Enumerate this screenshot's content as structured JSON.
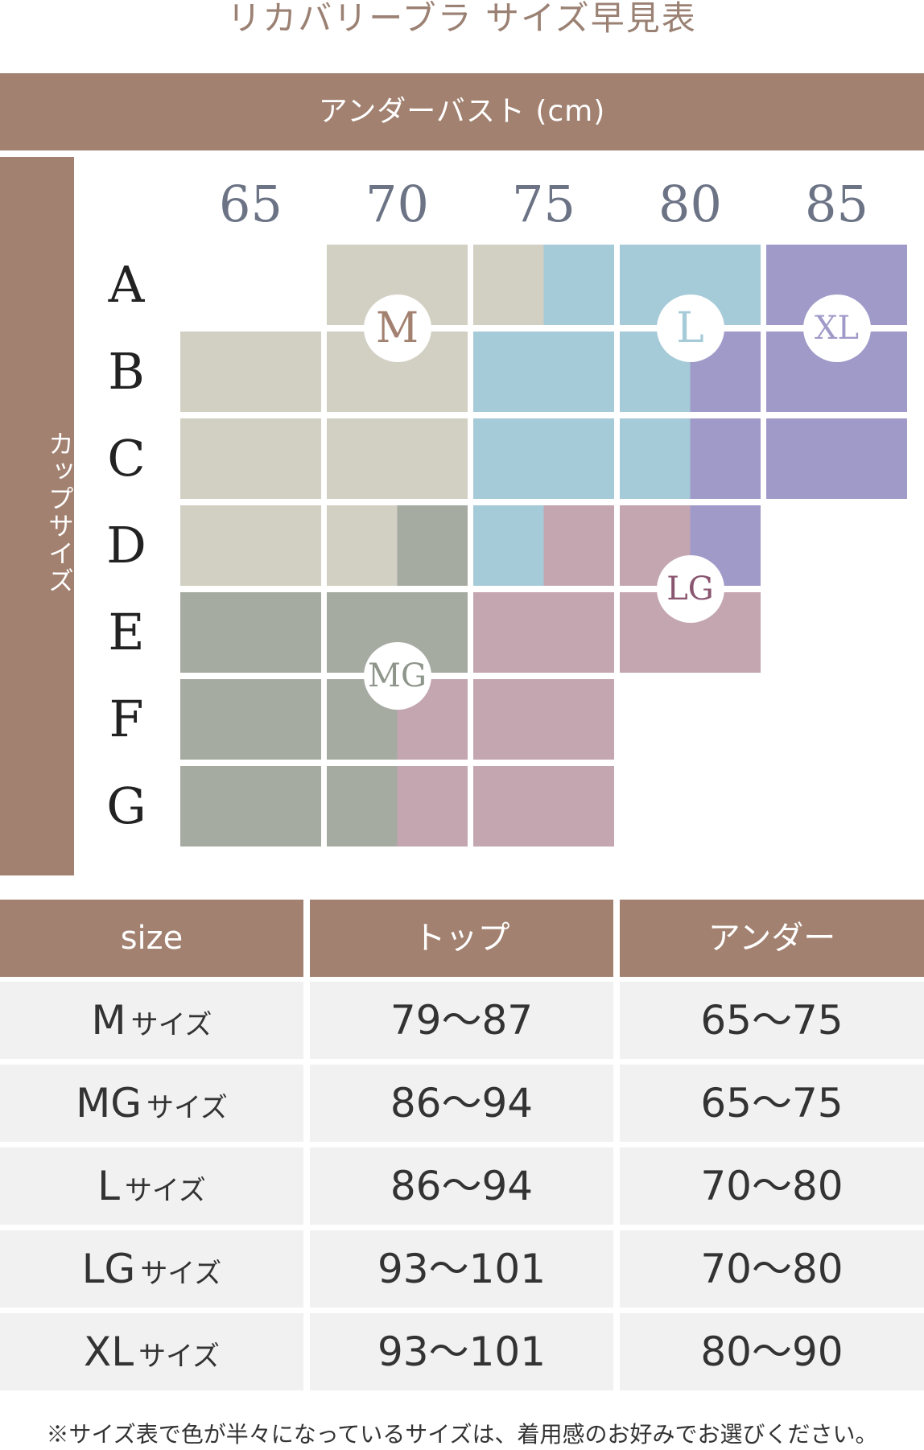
{
  "title": "リカバリーブラ サイズ早見表",
  "under_header": "アンダーバスト (cm)",
  "cup_header": "カップサイズ",
  "columns": [
    "65",
    "70",
    "75",
    "80",
    "85"
  ],
  "rows": [
    "A",
    "B",
    "C",
    "D",
    "E",
    "F",
    "G"
  ],
  "colors": {
    "header": "#a28170",
    "M": "#d2cfc3",
    "MG": "#a6aba2",
    "L": "#a5cad8",
    "LG": "#c4a6b1",
    "XL": "#a09ac9"
  },
  "grid": [
    [
      null,
      [
        "M"
      ],
      [
        "M",
        "L"
      ],
      [
        "L"
      ],
      [
        "XL"
      ]
    ],
    [
      [
        "M"
      ],
      [
        "M"
      ],
      [
        "L"
      ],
      [
        "L",
        "XL"
      ],
      [
        "XL"
      ]
    ],
    [
      [
        "M"
      ],
      [
        "M"
      ],
      [
        "L"
      ],
      [
        "L",
        "XL"
      ],
      [
        "XL"
      ]
    ],
    [
      [
        "M"
      ],
      [
        "M",
        "MG"
      ],
      [
        "L",
        "LG"
      ],
      [
        "LG",
        "XL"
      ],
      null
    ],
    [
      [
        "MG"
      ],
      [
        "MG"
      ],
      [
        "LG"
      ],
      [
        "LG"
      ],
      null
    ],
    [
      [
        "MG"
      ],
      [
        "MG",
        "LG"
      ],
      [
        "LG"
      ],
      null,
      null
    ],
    [
      [
        "MG"
      ],
      [
        "MG",
        "LG"
      ],
      [
        "LG"
      ],
      null,
      null
    ]
  ],
  "badges": [
    {
      "label": "M",
      "row": 1,
      "col": 1,
      "color": "#a28170"
    },
    {
      "label": "L",
      "row": 1,
      "col": 3,
      "color": "#a5cad8"
    },
    {
      "label": "XL",
      "row": 1,
      "col": 4,
      "color": "#a09ac9"
    },
    {
      "label": "LG",
      "row": 4,
      "col": 3,
      "color": "#8a5570"
    },
    {
      "label": "MG",
      "row": 5,
      "col": 1,
      "color": "#8e958a"
    }
  ],
  "table": {
    "headers": [
      "size",
      "トップ",
      "アンダー"
    ],
    "rows": [
      {
        "size": "M",
        "suffix": "サイズ",
        "top": "79〜87",
        "under": "65〜75"
      },
      {
        "size": "MG",
        "suffix": "サイズ",
        "top": "86〜94",
        "under": "65〜75"
      },
      {
        "size": "L",
        "suffix": "サイズ",
        "top": "86〜94",
        "under": "70〜80"
      },
      {
        "size": "LG",
        "suffix": "サイズ",
        "top": "93〜101",
        "under": "70〜80"
      },
      {
        "size": "XL",
        "suffix": "サイズ",
        "top": "93〜101",
        "under": "80〜90"
      }
    ]
  },
  "note": "※サイズ表で色が半々になっているサイズは、着用感のお好みでお選びください。"
}
